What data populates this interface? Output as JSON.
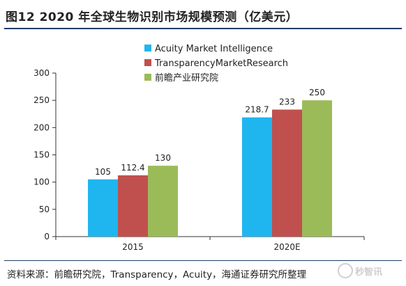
{
  "header": {
    "title": "图12 2020 年全球生物识别市场规模预测（亿美元）"
  },
  "footer": {
    "source": "资料来源：前瞻研究院，Transparency，Acuity，海通证券研究所整理",
    "watermark": "秒智讯"
  },
  "chart_data": {
    "type": "bar",
    "title": "",
    "xlabel": "",
    "ylabel": "",
    "categories": [
      "2015",
      "2020E"
    ],
    "series": [
      {
        "name": "Acuity Market Intelligence",
        "values": [
          105,
          218.7
        ],
        "labels": [
          "105",
          "218.7"
        ],
        "color": "#1fb6f0"
      },
      {
        "name": "TransparencyMarketResearch",
        "values": [
          112.4,
          233
        ],
        "labels": [
          "112.4",
          "233"
        ],
        "color": "#c0504d"
      },
      {
        "name": "前瞻产业研究院",
        "values": [
          130,
          250
        ],
        "labels": [
          "130",
          "250"
        ],
        "color": "#9bbb59"
      }
    ],
    "ylim": [
      0,
      300
    ],
    "yticks": [
      0,
      50,
      100,
      150,
      200,
      250,
      300
    ],
    "grid": false,
    "legend": "top-center"
  }
}
